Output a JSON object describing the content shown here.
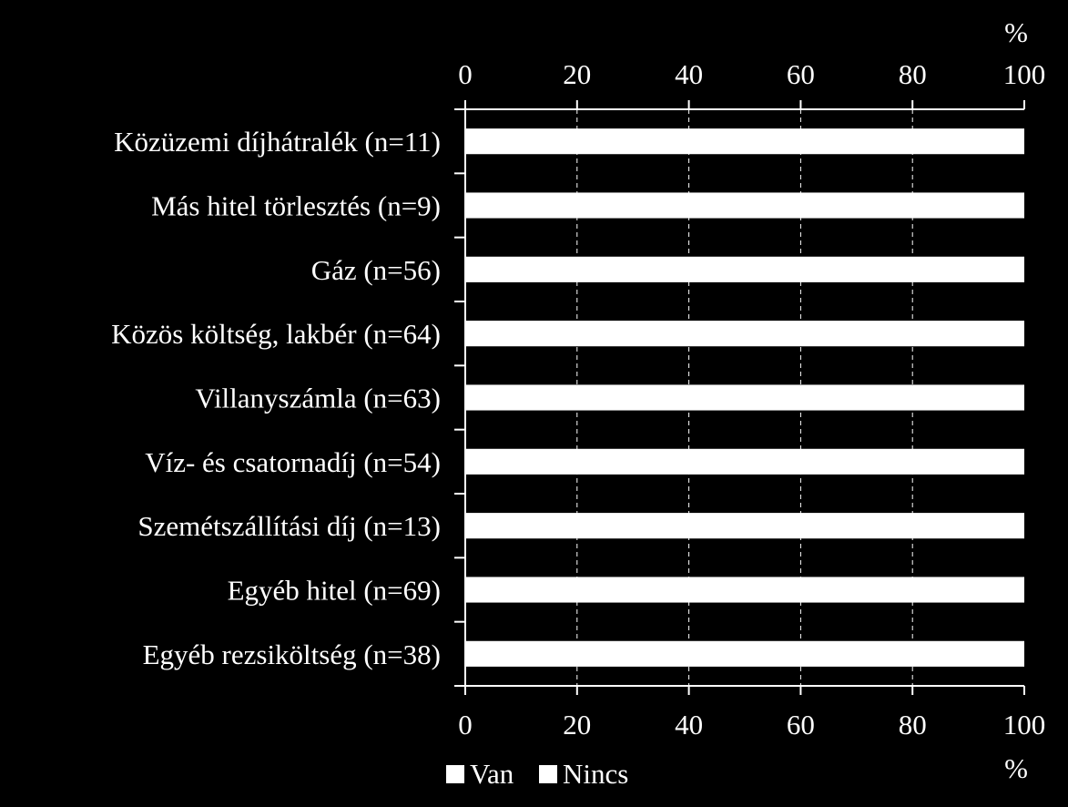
{
  "chart_data": {
    "type": "bar",
    "orientation": "horizontal",
    "stacked": true,
    "categories": [
      "Közüzemi díjhátralék (n=11)",
      "Más hitel törlesztés (n=9)",
      "Gáz (n=56)",
      "Közös költség, lakbér (n=64)",
      "Villanyszámla (n=63)",
      "Víz- és csatornadíj (n=54)",
      "Szemétszállítási díj (n=13)",
      "Egyéb hitel (n=69)",
      "Egyéb rezsiköltség (n=38)"
    ],
    "series": [
      {
        "name": "Van",
        "color": "#ffffff",
        "values": [
          100,
          100,
          100,
          100,
          100,
          100,
          100,
          100,
          100
        ]
      },
      {
        "name": "Nincs",
        "color": "#ffffff",
        "values": [
          0,
          0,
          0,
          0,
          0,
          0,
          0,
          0,
          0
        ]
      }
    ],
    "xlim": [
      0,
      100
    ],
    "xticks": [
      "0",
      "20",
      "40",
      "60",
      "80",
      "100"
    ],
    "xticks_top": [
      "0",
      "20",
      "40",
      "60",
      "80",
      "100"
    ],
    "unit_top": "%",
    "unit_bottom": "%",
    "grid": "vertical dashed",
    "legend_position": "bottom-left",
    "background": "#000000",
    "axis_color": "#ffffff"
  }
}
